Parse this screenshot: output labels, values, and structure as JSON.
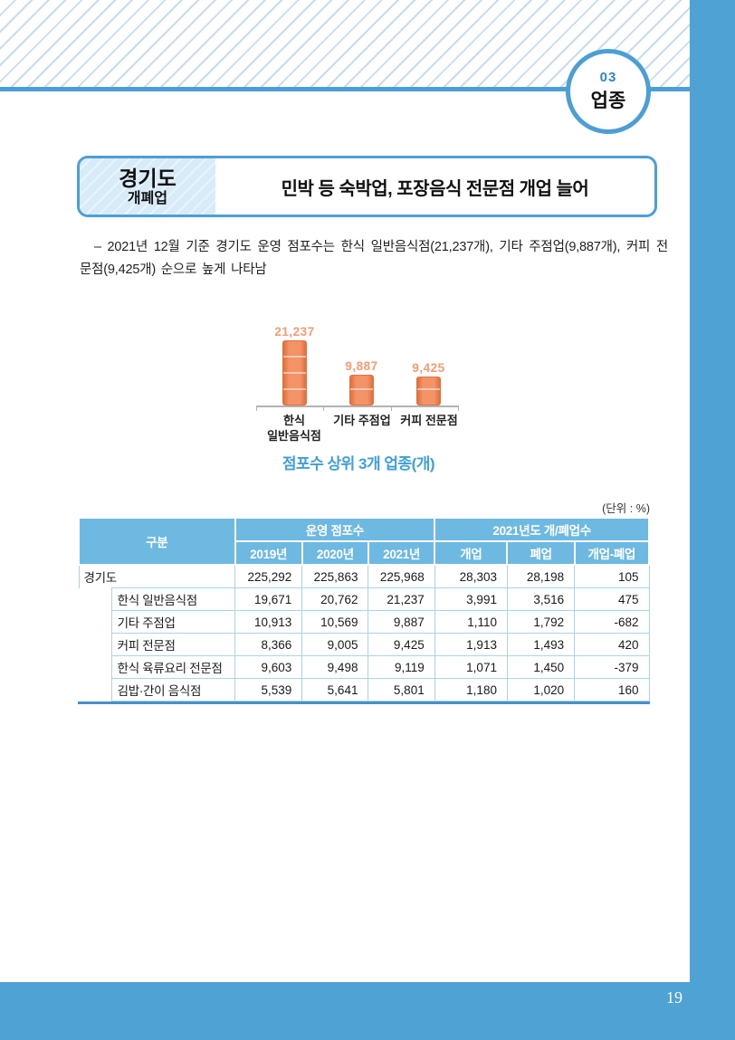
{
  "badge": {
    "number": "03",
    "label": "업종"
  },
  "title_box": {
    "region": "경기도",
    "region_sub": "개폐업",
    "headline": "민박 등 숙박업, 포장음식 전문점 개업 늘어"
  },
  "intro_text": "– 2021년 12월 기준 경기도 운영 점포수는 한식 일반음식점(21,237개), 기타 주점업(9,887개), 커피 전문점(9,425개) 순으로 높게 나타남",
  "chart_data": {
    "type": "bar",
    "title": "점포수 상위 3개 업종(개)",
    "categories": [
      "한식 일반음식점",
      "기타 주점업",
      "커피 전문점"
    ],
    "category_lines": [
      [
        "한식",
        "일반음식점"
      ],
      [
        "기타 주점업"
      ],
      [
        "커피 전문점"
      ]
    ],
    "values": [
      21237,
      9887,
      9425
    ],
    "value_labels": [
      "21,237",
      "9,887",
      "9,425"
    ],
    "ylim": [
      0,
      21237
    ],
    "grid": false,
    "legend": "none",
    "bar_color": "#f08c5e",
    "value_label_color": "#f59b74"
  },
  "table": {
    "unit_label": "(단위 : %)",
    "header": {
      "group_col": "구분",
      "group_store": "운영 점포수",
      "group_openclose": "2021년도 개/폐업수",
      "cols": [
        "2019년",
        "2020년",
        "2021년",
        "개업",
        "폐업",
        "개업-폐업"
      ]
    },
    "rows": [
      {
        "name": "경기도",
        "indent": false,
        "values": [
          "225,292",
          "225,863",
          "225,968",
          "28,303",
          "28,198",
          "105"
        ]
      },
      {
        "name": "한식 일반음식점",
        "indent": true,
        "values": [
          "19,671",
          "20,762",
          "21,237",
          "3,991",
          "3,516",
          "475"
        ]
      },
      {
        "name": "기타 주점업",
        "indent": true,
        "values": [
          "10,913",
          "10,569",
          "9,887",
          "1,110",
          "1,792",
          "-682"
        ]
      },
      {
        "name": "커피 전문점",
        "indent": true,
        "values": [
          "8,366",
          "9,005",
          "9,425",
          "1,913",
          "1,493",
          "420"
        ]
      },
      {
        "name": "한식 육류요리 전문점",
        "indent": true,
        "values": [
          "9,603",
          "9,498",
          "9,119",
          "1,071",
          "1,450",
          "-379"
        ]
      },
      {
        "name": "김밥·간이 음식점",
        "indent": true,
        "values": [
          "5,539",
          "5,641",
          "5,801",
          "1,180",
          "1,020",
          "160"
        ]
      }
    ]
  },
  "footer": {
    "page_number": "19"
  },
  "colors": {
    "accent_blue": "#4b9fd4",
    "sidebar_blue": "#4fa3d4",
    "table_header_blue": "#6eb9e2",
    "table_border_light": "#a9d4ec",
    "table_bottom_rule": "#4a90c8",
    "caption_blue": "#3f9fd9",
    "bar_orange": "#f08c5e"
  }
}
